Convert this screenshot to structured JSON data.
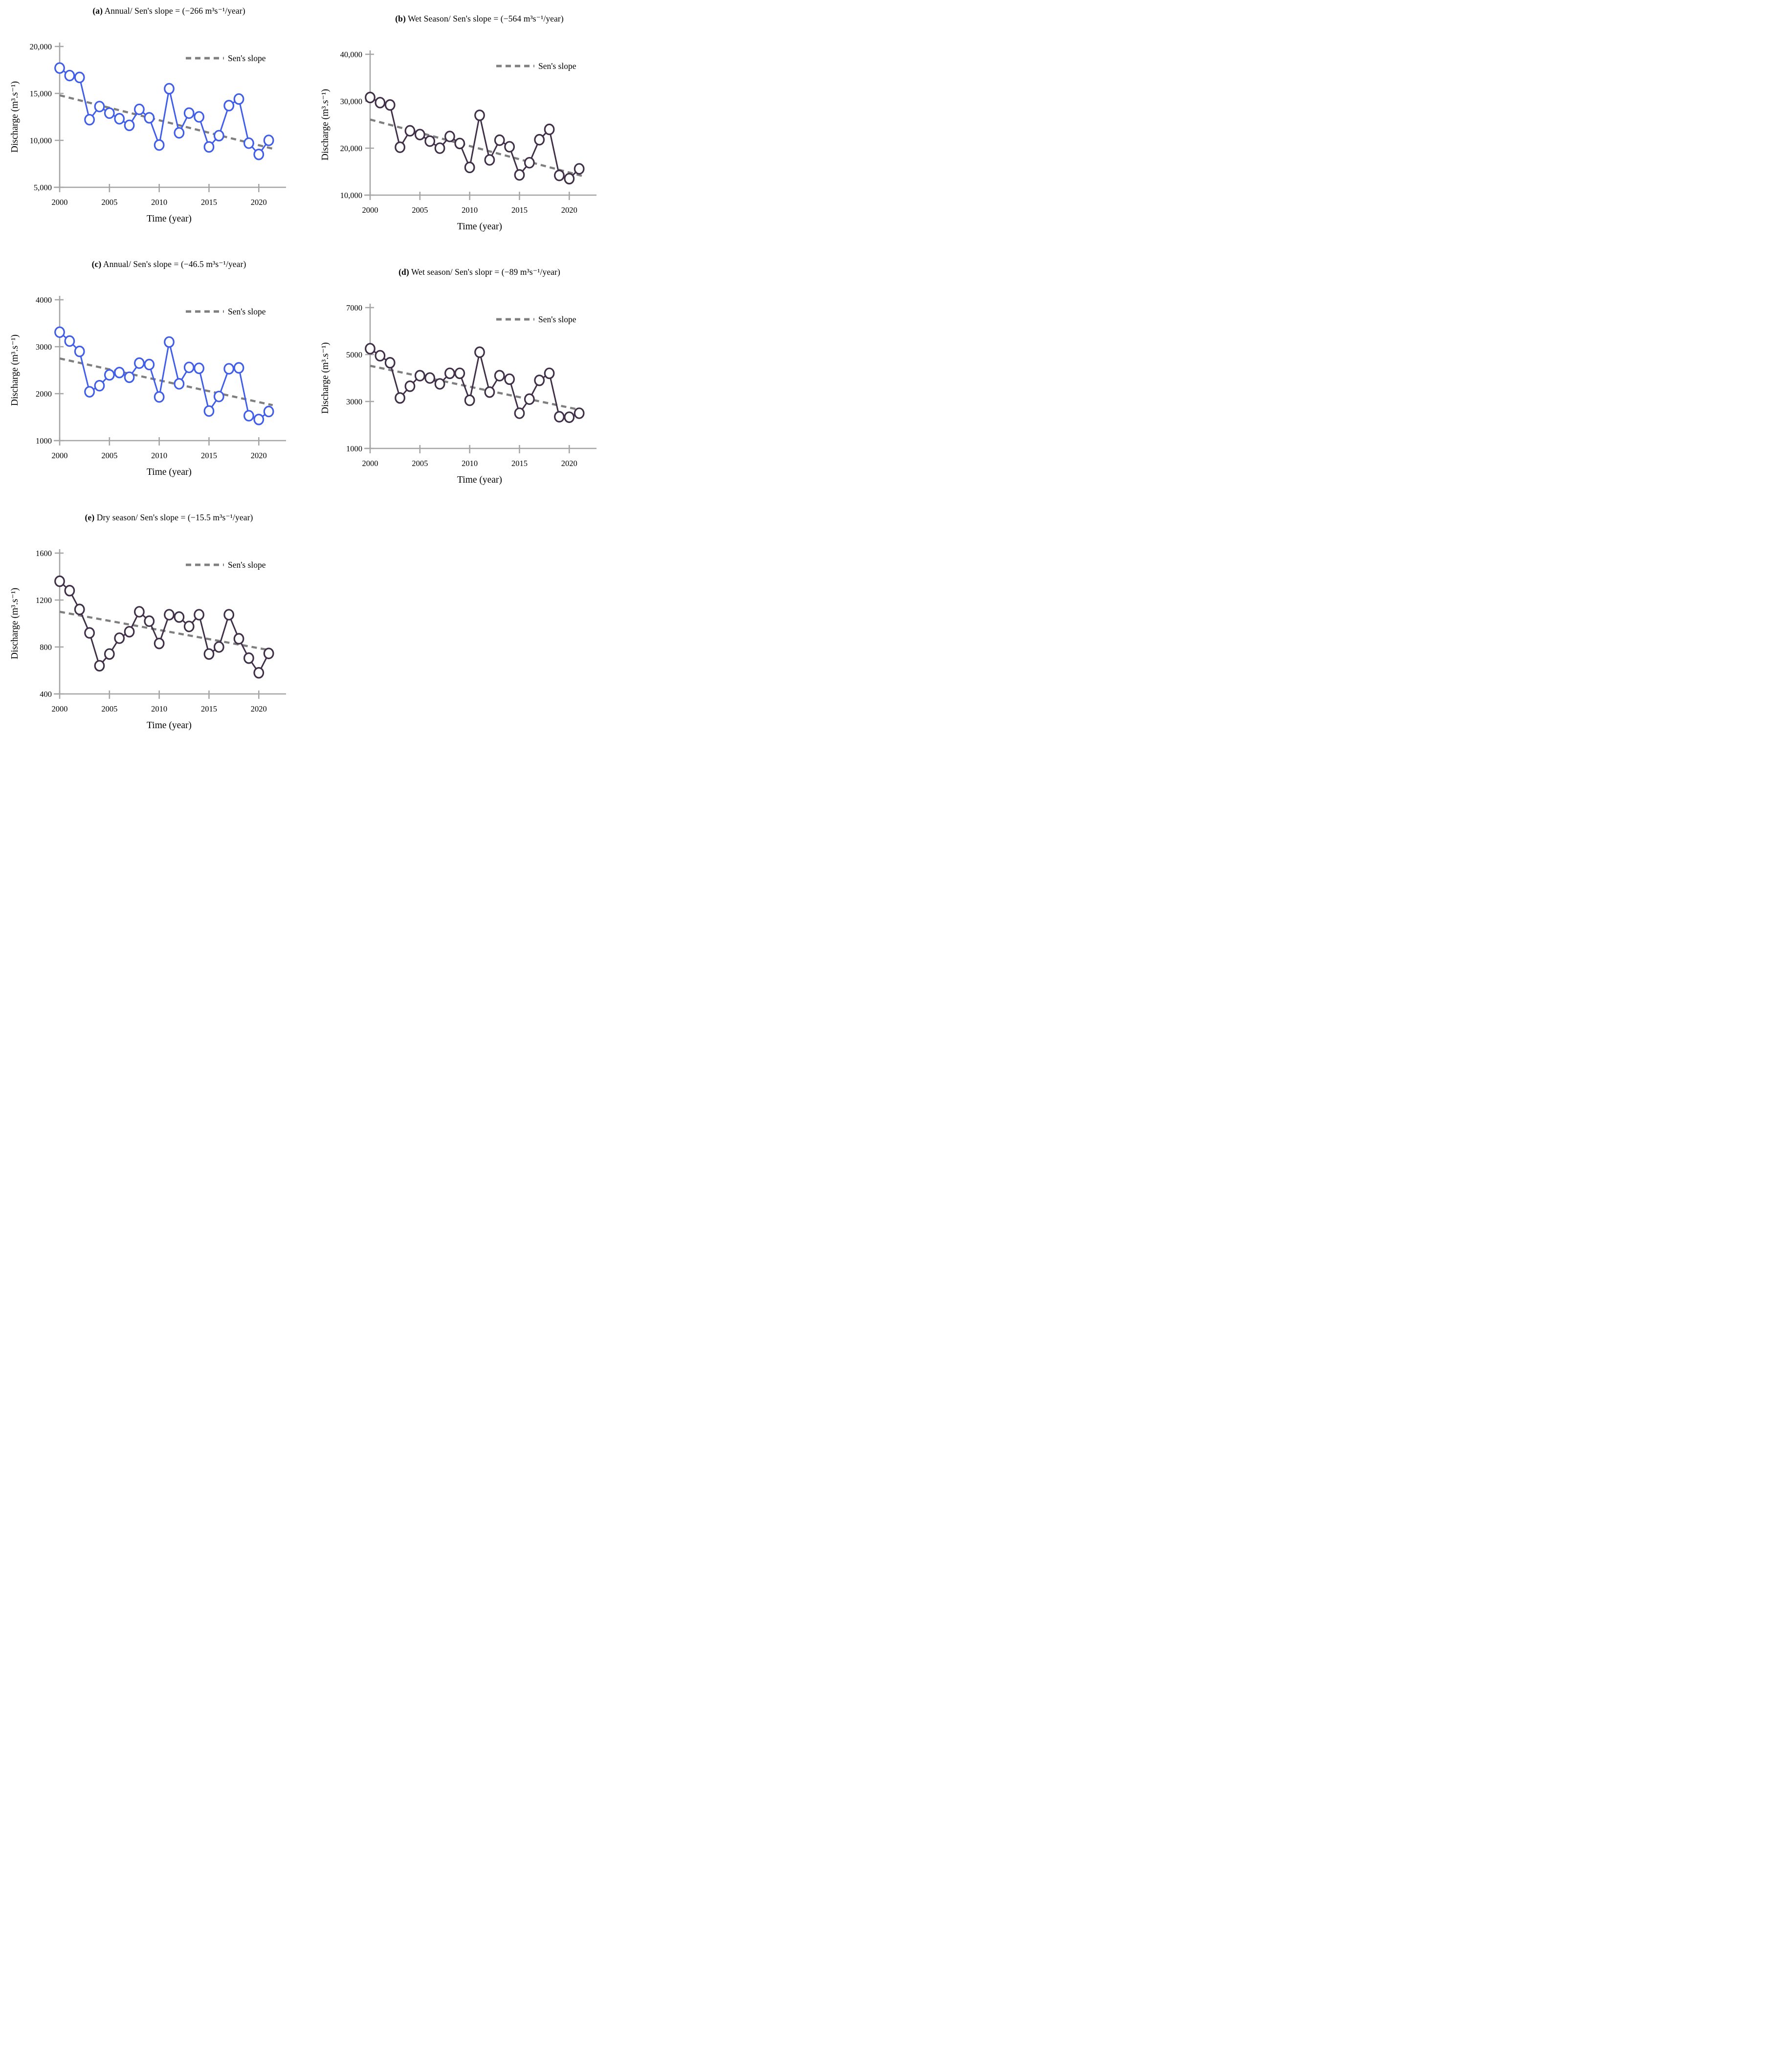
{
  "shared": {
    "xlabel": "Time (year)",
    "ylabel": "Discharge (m³.s⁻¹)",
    "legend_label": "Sen's slope",
    "axis_color": "#a6a6a6",
    "sen_color": "#7f7f7f",
    "text_color": "#000000",
    "marker_fill": "#ffffff",
    "blue_series_color": "#3f5de8",
    "dark_series_color": "#3f3048"
  },
  "chart_data": [
    {
      "type": "line",
      "panel": "a",
      "letter_display": "(a)",
      "title_rest": " Annual/ Sen's slope = (−266 m³s⁻¹/year)",
      "title": "(a) Annual/ Sen's slope = (−266 m³s⁻¹/year)",
      "xlabel": "Time (year)",
      "ylabel": "Discharge (m³.s⁻¹)",
      "legend": [
        "Sen's slope"
      ],
      "legend_position": "top-right",
      "grid": false,
      "xlim": [
        2000,
        2022
      ],
      "ylim": [
        5000,
        20000
      ],
      "x_ticks": [
        {
          "value": 2000,
          "label": "2000"
        },
        {
          "value": 2005,
          "label": "2005"
        },
        {
          "value": 2010,
          "label": "2010"
        },
        {
          "value": 2015,
          "label": "2015"
        },
        {
          "value": 2020,
          "label": "2020"
        }
      ],
      "y_ticks": [
        {
          "value": 20000,
          "label": "20,000"
        },
        {
          "value": 15000,
          "label": "15,000"
        },
        {
          "value": 10000,
          "label": "10,000"
        },
        {
          "value": 5000,
          "label": "5,000"
        }
      ],
      "series": [
        {
          "name": "Annual discharge",
          "color": "#3f5de8",
          "x": [
            2000,
            2001,
            2002,
            2003,
            2004,
            2005,
            2006,
            2007,
            2008,
            2009,
            2010,
            2011,
            2012,
            2013,
            2014,
            2015,
            2016,
            2017,
            2018,
            2019,
            2020,
            2021
          ],
          "values": [
            17700,
            16900,
            16700,
            12200,
            13600,
            12900,
            12300,
            11600,
            13300,
            12400,
            9500,
            15500,
            10800,
            12900,
            12500,
            9300,
            10500,
            13700,
            14400,
            9700,
            8500,
            10000
          ]
        }
      ],
      "sen_line": {
        "color": "#7f7f7f",
        "x": [
          2000,
          2021.4
        ],
        "y": [
          14800,
          9110
        ]
      }
    },
    {
      "type": "line",
      "panel": "b",
      "letter_display": "(b)",
      "title_rest": " Wet Season/ Sen's slope = (−564 m³s⁻¹/year)",
      "title": "(b) Wet Season/ Sen's slope = (−564 m³s⁻¹/year)",
      "xlabel": "Time (year)",
      "ylabel": "Discharge (m³.s⁻¹)",
      "legend": [
        "Sen's slope"
      ],
      "legend_position": "top-right",
      "grid": false,
      "xlim": [
        2000,
        2022
      ],
      "ylim": [
        10000,
        40000
      ],
      "x_ticks": [
        {
          "value": 2000,
          "label": "2000"
        },
        {
          "value": 2005,
          "label": "2005"
        },
        {
          "value": 2010,
          "label": "2010"
        },
        {
          "value": 2015,
          "label": "2015"
        },
        {
          "value": 2020,
          "label": "2020"
        }
      ],
      "y_ticks": [
        {
          "value": 40000,
          "label": "40,000"
        },
        {
          "value": 30000,
          "label": "30,000"
        },
        {
          "value": 20000,
          "label": "20,000"
        },
        {
          "value": 10000,
          "label": "10,000"
        }
      ],
      "series": [
        {
          "name": "Wet season discharge",
          "color": "#3f3048",
          "x": [
            2000,
            2001,
            2002,
            2003,
            2004,
            2005,
            2006,
            2007,
            2008,
            2009,
            2010,
            2011,
            2012,
            2013,
            2014,
            2015,
            2016,
            2017,
            2018,
            2019,
            2020,
            2021
          ],
          "values": [
            30800,
            29700,
            29200,
            20200,
            23700,
            22900,
            21500,
            20000,
            22500,
            21000,
            15900,
            27000,
            17500,
            21700,
            20300,
            14300,
            16900,
            21800,
            24000,
            14200,
            13500,
            15600
          ]
        }
      ],
      "sen_line": {
        "color": "#7f7f7f",
        "x": [
          2000,
          2021.4
        ],
        "y": [
          26100,
          14030
        ]
      }
    },
    {
      "type": "line",
      "panel": "c",
      "letter_display": "(c)",
      "title_rest": " Annual/ Sen's slope = (−46.5 m³s⁻¹/year)",
      "title": "(c) Annual/ Sen's slope = (−46.5 m³s⁻¹/year)",
      "xlabel": "Time (year)",
      "ylabel": "Discharge (m³.s⁻¹)",
      "legend": [
        "Sen's slope"
      ],
      "legend_position": "top-right",
      "grid": false,
      "xlim": [
        2000,
        2022
      ],
      "ylim": [
        1000,
        4000
      ],
      "x_ticks": [
        {
          "value": 2000,
          "label": "2000"
        },
        {
          "value": 2005,
          "label": "2005"
        },
        {
          "value": 2010,
          "label": "2010"
        },
        {
          "value": 2015,
          "label": "2015"
        },
        {
          "value": 2020,
          "label": "2020"
        }
      ],
      "y_ticks": [
        {
          "value": 4000,
          "label": "4000"
        },
        {
          "value": 3000,
          "label": "3000"
        },
        {
          "value": 2000,
          "label": "2000"
        },
        {
          "value": 1000,
          "label": "1000"
        }
      ],
      "series": [
        {
          "name": "Annual discharge",
          "color": "#3f5de8",
          "x": [
            2000,
            2001,
            2002,
            2003,
            2004,
            2005,
            2006,
            2007,
            2008,
            2009,
            2010,
            2011,
            2012,
            2013,
            2014,
            2015,
            2016,
            2017,
            2018,
            2019,
            2020,
            2021
          ],
          "values": [
            3310,
            3120,
            2900,
            2040,
            2170,
            2400,
            2450,
            2350,
            2650,
            2620,
            1930,
            3100,
            2210,
            2560,
            2540,
            1630,
            1940,
            2530,
            2550,
            1530,
            1450,
            1620
          ]
        }
      ],
      "sen_line": {
        "color": "#7f7f7f",
        "x": [
          2000,
          2021.4
        ],
        "y": [
          2750,
          1755
        ]
      }
    },
    {
      "type": "line",
      "panel": "d",
      "letter_display": "(d)",
      "title_rest": " Wet season/ Sen's slopr = (−89 m³s⁻¹/year)",
      "title": "(d) Wet season/ Sen's slopr = (−89 m³s⁻¹/year)",
      "xlabel": "Time (year)",
      "ylabel": "Discharge (m³.s⁻¹)",
      "legend": [
        "Sen's slope"
      ],
      "legend_position": "top-right",
      "grid": false,
      "xlim": [
        2000,
        2022
      ],
      "ylim": [
        1000,
        7000
      ],
      "x_ticks": [
        {
          "value": 2000,
          "label": "2000"
        },
        {
          "value": 2005,
          "label": "2005"
        },
        {
          "value": 2010,
          "label": "2010"
        },
        {
          "value": 2015,
          "label": "2015"
        },
        {
          "value": 2020,
          "label": "2020"
        }
      ],
      "y_ticks": [
        {
          "value": 7000,
          "label": "7000"
        },
        {
          "value": 5000,
          "label": "5000"
        },
        {
          "value": 3000,
          "label": "3000"
        },
        {
          "value": 1000,
          "label": "1000"
        }
      ],
      "series": [
        {
          "name": "Wet season discharge",
          "color": "#3f3048",
          "x": [
            2000,
            2001,
            2002,
            2003,
            2004,
            2005,
            2006,
            2007,
            2008,
            2009,
            2010,
            2011,
            2012,
            2013,
            2014,
            2015,
            2016,
            2017,
            2018,
            2019,
            2020,
            2021
          ],
          "values": [
            5250,
            4950,
            4650,
            3150,
            3650,
            4100,
            4000,
            3750,
            4200,
            4200,
            3050,
            5100,
            3400,
            4100,
            3950,
            2500,
            3100,
            3900,
            4200,
            2350,
            2330,
            2500
          ]
        }
      ],
      "sen_line": {
        "color": "#7f7f7f",
        "x": [
          2000,
          2021.4
        ],
        "y": [
          4520,
          2615
        ]
      }
    },
    {
      "type": "line",
      "panel": "e",
      "letter_display": "(e)",
      "title_rest": " Dry season/ Sen's slope = (−15.5 m³s⁻¹/year)",
      "title": "(e) Dry season/ Sen's slope = (−15.5 m³s⁻¹/year)",
      "xlabel": "Time (year)",
      "ylabel": "Discharge (m³.s⁻¹)",
      "legend": [
        "Sen's slope"
      ],
      "legend_position": "top-right",
      "grid": false,
      "xlim": [
        2000,
        2022
      ],
      "ylim": [
        400,
        1600
      ],
      "x_ticks": [
        {
          "value": 2000,
          "label": "2000"
        },
        {
          "value": 2005,
          "label": "2005"
        },
        {
          "value": 2010,
          "label": "2010"
        },
        {
          "value": 2015,
          "label": "2015"
        },
        {
          "value": 2020,
          "label": "2020"
        }
      ],
      "y_ticks": [
        {
          "value": 1600,
          "label": "1600"
        },
        {
          "value": 1200,
          "label": "1200"
        },
        {
          "value": 800,
          "label": "800"
        },
        {
          "value": 400,
          "label": "400"
        }
      ],
      "series": [
        {
          "name": "Dry season discharge",
          "color": "#3f3048",
          "x": [
            2000,
            2001,
            2002,
            2003,
            2004,
            2005,
            2006,
            2007,
            2008,
            2009,
            2010,
            2011,
            2012,
            2013,
            2014,
            2015,
            2016,
            2017,
            2018,
            2019,
            2020,
            2021
          ],
          "values": [
            1360,
            1280,
            1120,
            920,
            640,
            740,
            875,
            930,
            1100,
            1020,
            830,
            1075,
            1055,
            975,
            1075,
            740,
            800,
            1075,
            870,
            705,
            580,
            745
          ]
        }
      ],
      "sen_line": {
        "color": "#7f7f7f",
        "x": [
          2000,
          2021.4
        ],
        "y": [
          1100,
          768
        ]
      }
    }
  ]
}
